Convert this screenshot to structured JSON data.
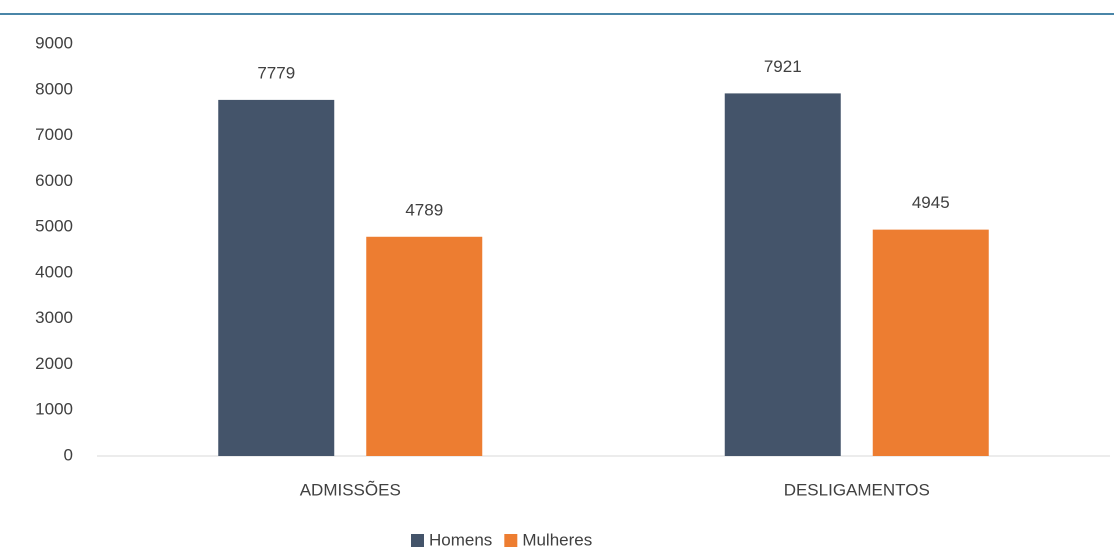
{
  "chart_data": {
    "type": "bar",
    "categories": [
      "ADMISSÕES",
      "DESLIGAMENTOS"
    ],
    "series": [
      {
        "name": "Homens",
        "color": "#44546a",
        "values": [
          7779,
          7921
        ]
      },
      {
        "name": "Mulheres",
        "color": "#ed7d31",
        "values": [
          4789,
          4945
        ]
      }
    ],
    "ylim": [
      0,
      9000
    ],
    "yticks": [
      0,
      1000,
      2000,
      3000,
      4000,
      5000,
      6000,
      7000,
      8000,
      9000
    ],
    "grid": false,
    "legend": "bottom"
  }
}
